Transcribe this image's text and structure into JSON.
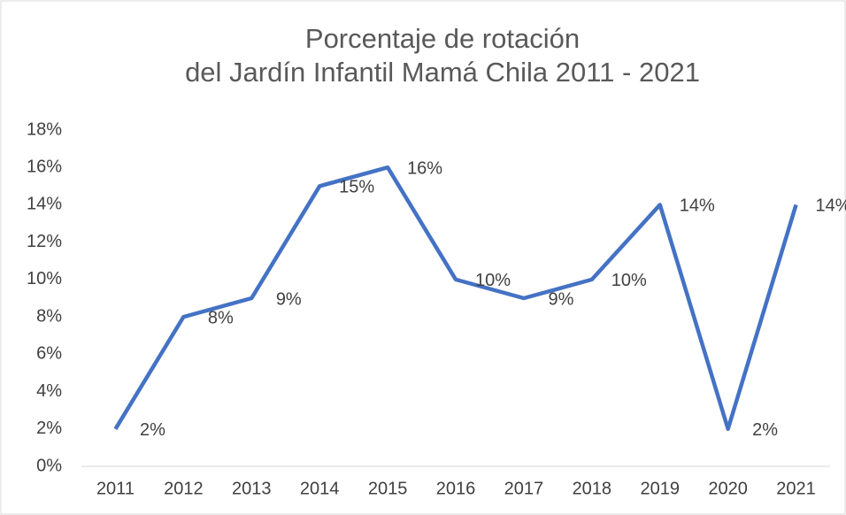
{
  "chart_data": {
    "type": "line",
    "title": [
      "Porcentaje de rotación",
      "del Jardín Infantil Mamá Chila 2011 - 2021"
    ],
    "categories": [
      "2011",
      "2012",
      "2013",
      "2014",
      "2015",
      "2016",
      "2017",
      "2018",
      "2019",
      "2020",
      "2021"
    ],
    "values": [
      2,
      8,
      9,
      15,
      16,
      10,
      9,
      10,
      14,
      2,
      14
    ],
    "value_labels": [
      "2%",
      "8%",
      "9%",
      "15%",
      "16%",
      "10%",
      "9%",
      "10%",
      "14%",
      "2%",
      "14%"
    ],
    "color": "#4472c4",
    "ylim": [
      0,
      18
    ],
    "yticks": [
      {
        "value": 0,
        "label": "0%"
      },
      {
        "value": 2,
        "label": "2%"
      },
      {
        "value": 4,
        "label": "4%"
      },
      {
        "value": 6,
        "label": "6%"
      },
      {
        "value": 8,
        "label": "8%"
      },
      {
        "value": 10,
        "label": "10%"
      },
      {
        "value": 12,
        "label": "12%"
      },
      {
        "value": 14,
        "label": "14%"
      },
      {
        "value": 16,
        "label": "16%"
      },
      {
        "value": 18,
        "label": "18%"
      }
    ],
    "grid": false
  }
}
